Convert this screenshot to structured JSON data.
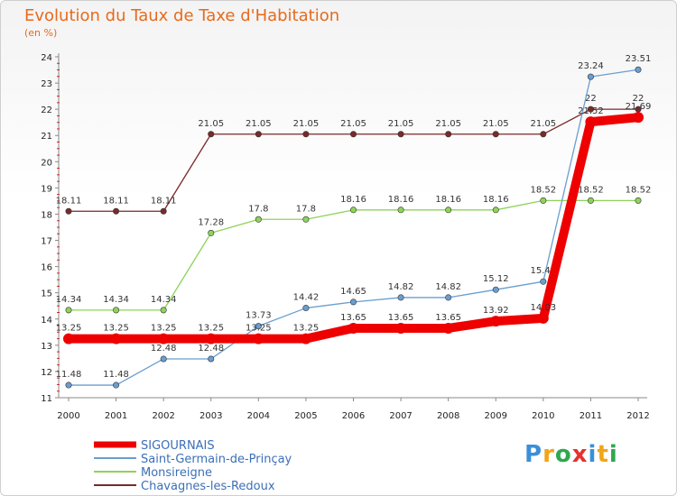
{
  "title": "Evolution du Taux de Taxe d'Habitation",
  "subtitle": "(en %)",
  "logo": {
    "text": "Proxiti",
    "colors": [
      "#3b8fd9",
      "#f2a516",
      "#2fa84f",
      "#e8302c",
      "#3b8fd9",
      "#f2a516",
      "#2fa84f"
    ]
  },
  "chart_data": {
    "type": "line",
    "x": [
      "2000",
      "2001",
      "2002",
      "2003",
      "2004",
      "2005",
      "2006",
      "2007",
      "2008",
      "2009",
      "2010",
      "2011",
      "2012"
    ],
    "ylim": [
      11,
      24
    ],
    "yticks": [
      "11",
      "12",
      "13",
      "14",
      "15",
      "16",
      "17",
      "18",
      "19",
      "20",
      "21",
      "22",
      "23",
      "24"
    ],
    "grid": false,
    "legend_position": "bottom-left",
    "series": [
      {
        "name": "SIGOURNAIS",
        "color": "#ee0000",
        "values": [
          13.25,
          13.25,
          13.25,
          13.25,
          13.25,
          13.25,
          13.65,
          13.65,
          13.65,
          13.92,
          14.03,
          21.52,
          21.69
        ],
        "labels": [
          "13.25",
          "13.25",
          "13.25",
          "13.25",
          "13.25",
          "13.25",
          "13.65",
          "13.65",
          "13.65",
          "13.92",
          "14.03",
          "21.52",
          "21.69"
        ]
      },
      {
        "name": "Saint-Germain-de-Prinçay",
        "color": "#6a9ed0",
        "values": [
          11.48,
          11.48,
          12.48,
          12.48,
          13.73,
          14.42,
          14.65,
          14.82,
          14.82,
          15.12,
          15.43,
          23.24,
          23.51
        ],
        "labels": [
          "11.48",
          "11.48",
          "12.48",
          "12.48",
          "13.73",
          "14.42",
          "14.65",
          "14.82",
          "14.82",
          "15.12",
          "15.43",
          "23.24",
          "23.51"
        ]
      },
      {
        "name": "Monsireigne",
        "color": "#8fd35a",
        "values": [
          14.34,
          14.34,
          14.34,
          17.28,
          17.8,
          17.8,
          18.16,
          18.16,
          18.16,
          18.16,
          18.52,
          18.52,
          18.52
        ],
        "labels": [
          "14.34",
          "14.34",
          "14.34",
          "17.28",
          "17.8",
          "17.8",
          "18.16",
          "18.16",
          "18.16",
          "18.16",
          "18.52",
          "18.52",
          "18.52"
        ]
      },
      {
        "name": "Chavagnes-les-Redoux",
        "color": "#7a2a2a",
        "values": [
          18.11,
          18.11,
          18.11,
          21.05,
          21.05,
          21.05,
          21.05,
          21.05,
          21.05,
          21.05,
          21.05,
          22,
          22
        ],
        "labels": [
          "18.11",
          "18.11",
          "18.11",
          "21.05",
          "21.05",
          "21.05",
          "21.05",
          "21.05",
          "21.05",
          "21.05",
          "21.05",
          "22",
          "22"
        ]
      }
    ]
  }
}
